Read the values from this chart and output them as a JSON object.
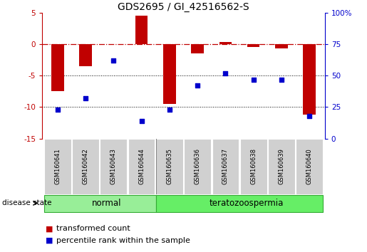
{
  "title": "GDS2695 / GI_42516562-S",
  "samples": [
    "GSM160641",
    "GSM160642",
    "GSM160643",
    "GSM160644",
    "GSM160635",
    "GSM160636",
    "GSM160637",
    "GSM160638",
    "GSM160639",
    "GSM160640"
  ],
  "transformed_count": [
    -7.5,
    -3.5,
    0.0,
    4.5,
    -9.5,
    -1.5,
    0.35,
    -0.5,
    -0.7,
    -11.2
  ],
  "percentile_rank": [
    23,
    32,
    62,
    14,
    23,
    42,
    52,
    47,
    47,
    18
  ],
  "ylim_left": [
    -15,
    5
  ],
  "ylim_right": [
    0,
    100
  ],
  "bar_color": "#c00000",
  "dot_color": "#0000cc",
  "dotted_lines": [
    -5,
    -10
  ],
  "normal_color": "#98ee98",
  "terato_color": "#66ee66",
  "group_border_color": "#33aa33",
  "sample_box_color": "#d0d0d0",
  "title_fontsize": 10,
  "tick_fontsize": 7.5,
  "sample_fontsize": 6,
  "label_fontsize": 8.5,
  "legend_fontsize": 8
}
